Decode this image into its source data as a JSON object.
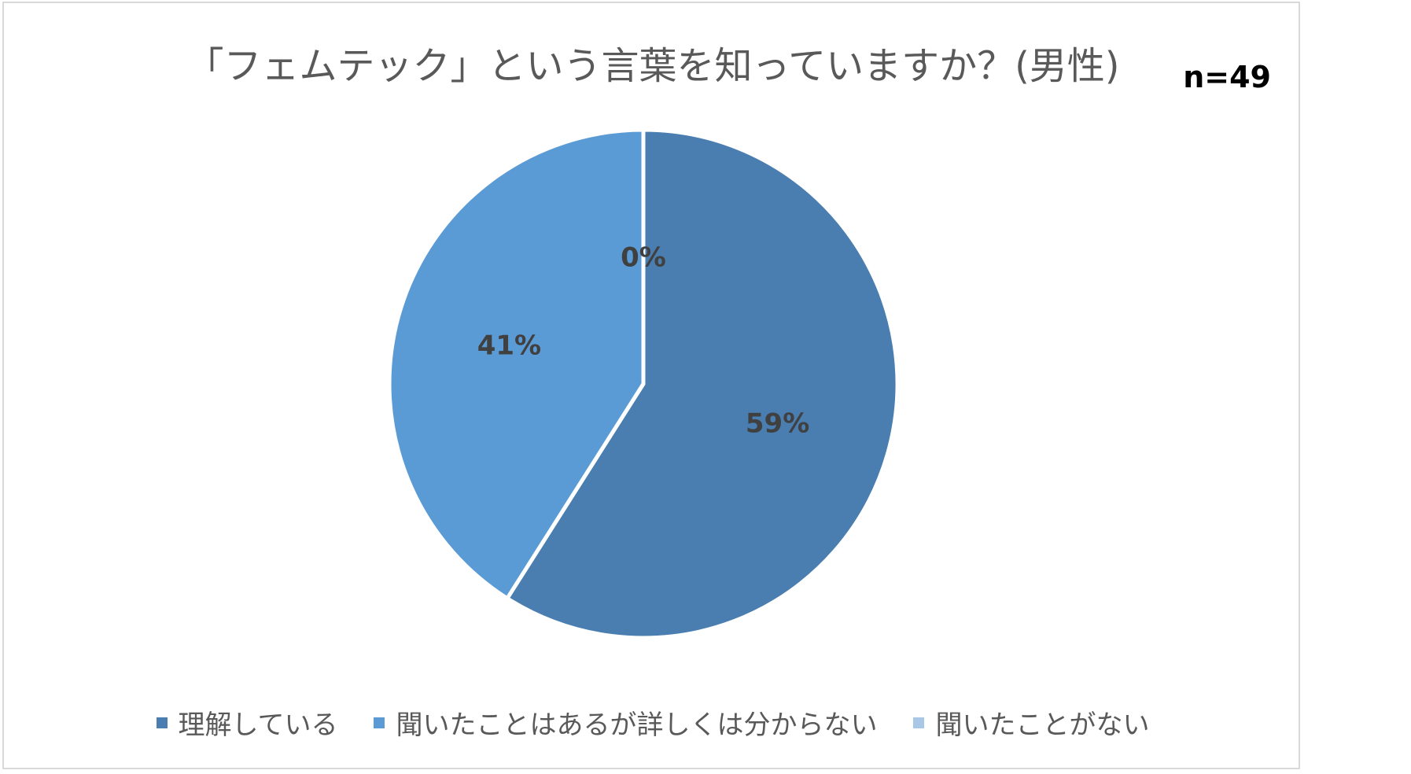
{
  "chart_data": {
    "type": "pie",
    "title": "「フェムテック」という言葉を知っていますか？(男性)",
    "annotation": "n=49",
    "categories": [
      "理解している",
      "聞いたことはあるが詳しくは分からない",
      "聞いたことがない"
    ],
    "values": [
      59,
      41,
      0
    ],
    "value_labels": [
      "59%",
      "41%",
      "0%"
    ],
    "unit": "%",
    "colors": [
      "#4a7eb0",
      "#5b9bd5",
      "#a9c8e8"
    ],
    "legend_position": "bottom"
  }
}
